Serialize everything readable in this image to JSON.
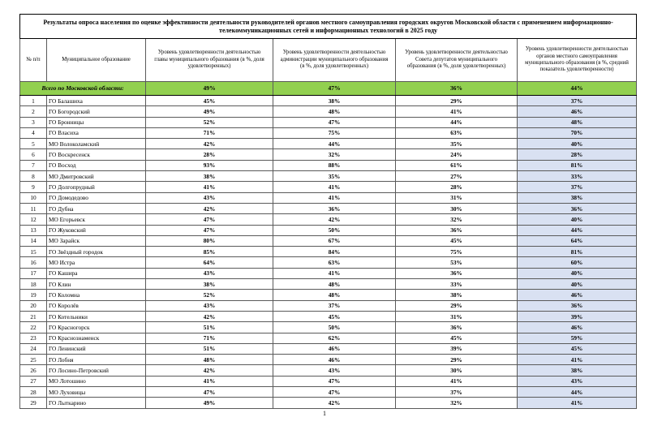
{
  "page": {
    "title": "Результаты опроса населения по оценке эффективности деятельности руководителей органов местного самоуправления городских округов Московской области с применением информационно-телекоммуникационных сетей и информационных технологий в 2025 году",
    "page_number": "1"
  },
  "colors": {
    "total_row_bg": "#92D050",
    "last_column_bg": "#D9E1F2"
  },
  "table": {
    "headers": [
      "№ п/п",
      "Муниципальное образование",
      "Уровень удовлетворенности деятельностью главы муниципального образования (в %, доля удовлетворенных)",
      "Уровень удовлетворенности деятельностью администрации муниципального образования (в %, доля удовлетворенных)",
      "Уровень удовлетворенности деятельностью Совета депутатов муниципального образования (в %, доля удовлетворенных)",
      "Уровень удовлетворенности деятельностью органов местного самоуправления муниципального образования (в %, средний показатель удовлетворенности)"
    ],
    "total_row": {
      "label": "Всего по Московской области:",
      "values": [
        "49%",
        "47%",
        "36%",
        "44%"
      ]
    },
    "rows": [
      {
        "num": "1",
        "name": "ГО Балашиха",
        "values": [
          "45%",
          "38%",
          "29%",
          "37%"
        ]
      },
      {
        "num": "2",
        "name": "ГО Богородский",
        "values": [
          "49%",
          "48%",
          "41%",
          "46%"
        ]
      },
      {
        "num": "3",
        "name": "ГО Бронницы",
        "values": [
          "52%",
          "47%",
          "44%",
          "48%"
        ]
      },
      {
        "num": "4",
        "name": "ГО Власиха",
        "values": [
          "71%",
          "75%",
          "63%",
          "70%"
        ]
      },
      {
        "num": "5",
        "name": "МО Волоколамский",
        "values": [
          "42%",
          "44%",
          "35%",
          "40%"
        ]
      },
      {
        "num": "6",
        "name": "ГО Воскресенск",
        "values": [
          "28%",
          "32%",
          "24%",
          "28%"
        ]
      },
      {
        "num": "7",
        "name": "ГО Восход",
        "values": [
          "93%",
          "88%",
          "61%",
          "81%"
        ]
      },
      {
        "num": "8",
        "name": "МО Дмитровский",
        "values": [
          "38%",
          "35%",
          "27%",
          "33%"
        ]
      },
      {
        "num": "9",
        "name": "ГО Долгопрудный",
        "values": [
          "41%",
          "41%",
          "28%",
          "37%"
        ]
      },
      {
        "num": "10",
        "name": "ГО Домодедово",
        "values": [
          "43%",
          "41%",
          "31%",
          "38%"
        ]
      },
      {
        "num": "11",
        "name": "ГО Дубна",
        "values": [
          "42%",
          "36%",
          "30%",
          "36%"
        ]
      },
      {
        "num": "12",
        "name": "МО Егорьевск",
        "values": [
          "47%",
          "42%",
          "32%",
          "40%"
        ]
      },
      {
        "num": "13",
        "name": "ГО Жуковский",
        "values": [
          "47%",
          "50%",
          "36%",
          "44%"
        ]
      },
      {
        "num": "14",
        "name": "МО Зарайск",
        "values": [
          "80%",
          "67%",
          "45%",
          "64%"
        ]
      },
      {
        "num": "15",
        "name": "ГО Звёздный городок",
        "values": [
          "85%",
          "84%",
          "75%",
          "81%"
        ]
      },
      {
        "num": "16",
        "name": "МО Истра",
        "values": [
          "64%",
          "63%",
          "53%",
          "60%"
        ]
      },
      {
        "num": "17",
        "name": "ГО Кашира",
        "values": [
          "43%",
          "41%",
          "36%",
          "40%"
        ]
      },
      {
        "num": "18",
        "name": "ГО Клин",
        "values": [
          "38%",
          "48%",
          "33%",
          "40%"
        ]
      },
      {
        "num": "19",
        "name": "ГО Коломна",
        "values": [
          "52%",
          "48%",
          "38%",
          "46%"
        ]
      },
      {
        "num": "20",
        "name": "ГО Королёв",
        "values": [
          "43%",
          "37%",
          "29%",
          "36%"
        ]
      },
      {
        "num": "21",
        "name": "ГО Котельники",
        "values": [
          "42%",
          "45%",
          "31%",
          "39%"
        ]
      },
      {
        "num": "22",
        "name": "ГО Красногорск",
        "values": [
          "51%",
          "50%",
          "36%",
          "46%"
        ]
      },
      {
        "num": "23",
        "name": "ГО Краснознаменск",
        "values": [
          "71%",
          "62%",
          "45%",
          "59%"
        ]
      },
      {
        "num": "24",
        "name": "ГО Ленинский",
        "values": [
          "51%",
          "46%",
          "39%",
          "45%"
        ]
      },
      {
        "num": "25",
        "name": "ГО Лобня",
        "values": [
          "48%",
          "46%",
          "29%",
          "41%"
        ]
      },
      {
        "num": "26",
        "name": "ГО Лосино-Петровский",
        "values": [
          "42%",
          "43%",
          "30%",
          "38%"
        ]
      },
      {
        "num": "27",
        "name": "МО Лотошино",
        "values": [
          "41%",
          "47%",
          "41%",
          "43%"
        ]
      },
      {
        "num": "28",
        "name": "МО Луховицы",
        "values": [
          "47%",
          "47%",
          "37%",
          "44%"
        ]
      },
      {
        "num": "29",
        "name": "ГО Лыткарино",
        "values": [
          "49%",
          "42%",
          "32%",
          "41%"
        ]
      }
    ]
  }
}
